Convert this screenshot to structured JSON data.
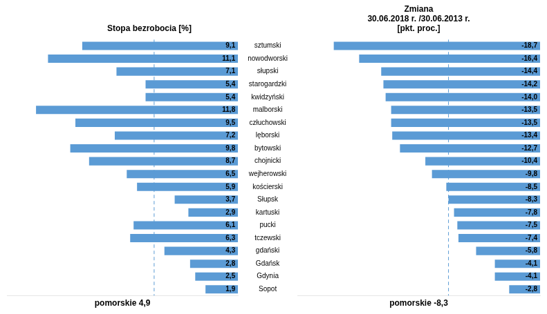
{
  "chart_data": [
    {
      "type": "bar",
      "orientation": "horizontal",
      "title": "Stopa bezrobocia [%]",
      "xlabel": "pomorskie 4,9",
      "categories": [
        "sztumski",
        "nowodworski",
        "słupski",
        "starogardzki",
        "kwidzyński",
        "malborski",
        "człuchowski",
        "lęborski",
        "bytowski",
        "chojnicki",
        "wejherowski",
        "kościerski",
        "Słupsk",
        "kartuski",
        "pucki",
        "tczewski",
        "gdański",
        "Gdańsk",
        "Gdynia",
        "Sopot"
      ],
      "values": [
        9.1,
        11.1,
        7.1,
        5.4,
        5.4,
        11.8,
        9.5,
        7.2,
        9.8,
        8.7,
        6.5,
        5.9,
        3.7,
        2.9,
        6.1,
        6.3,
        4.3,
        2.8,
        2.5,
        1.9
      ],
      "value_labels": [
        "9,1",
        "11,1",
        "7,1",
        "5,4",
        "5,4",
        "11,8",
        "9,5",
        "7,2",
        "9,8",
        "8,7",
        "6,5",
        "5,9",
        "3,7",
        "2,9",
        "6,1",
        "6,3",
        "4,3",
        "2,8",
        "2,5",
        "1,9"
      ],
      "data_labels": true,
      "color": "#5B9BD5",
      "xlim": [
        13.5,
        0
      ],
      "xticks": [],
      "tick_labels": "y",
      "grid": false,
      "reference_line": {
        "value": 4.9,
        "line_style": "dashed"
      }
    },
    {
      "type": "bar",
      "orientation": "horizontal",
      "title": "Zmiana\n30.06.2018 r. /30.06.2013 r.\n[pkt. proc.]",
      "xlabel": "pomorskie -8,3",
      "categories": [
        "sztumski",
        "nowodworski",
        "słupski",
        "starogardzki",
        "kwidzyński",
        "malborski",
        "człuchowski",
        "lęborski",
        "bytowski",
        "chojnicki",
        "wejherowski",
        "kościerski",
        "Słupsk",
        "kartuski",
        "pucki",
        "tczewski",
        "gdański",
        "Gdańsk",
        "Gdynia",
        "Sopot"
      ],
      "values": [
        -18.7,
        -16.4,
        -14.4,
        -14.2,
        -14.0,
        -13.5,
        -13.5,
        -13.4,
        -12.7,
        -10.4,
        -9.8,
        -8.5,
        -8.3,
        -7.8,
        -7.5,
        -7.4,
        -5.8,
        -4.1,
        -4.1,
        -2.8
      ],
      "value_labels": [
        "-18,7",
        "-16,4",
        "-14,4",
        "-14,2",
        "-14,0",
        "-13,5",
        "-13,5",
        "-13,4",
        "-12,7",
        "-10,4",
        "-9,8",
        "-8,5",
        "-8,3",
        "-7,8",
        "-7,5",
        "-7,4",
        "-5,8",
        "-4,1",
        "-4,1",
        "-2,8"
      ],
      "data_labels": true,
      "color": "#5B9BD5",
      "xlim": [
        -22,
        0
      ],
      "xticks": [],
      "tick_labels": false,
      "grid": false,
      "reference_line": {
        "value": -8.3,
        "line_style": "dashed"
      }
    }
  ]
}
